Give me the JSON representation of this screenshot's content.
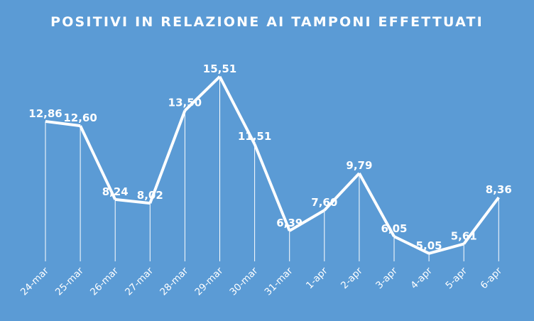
{
  "chart_data": {
    "type": "line",
    "title": "POSITIVI IN RELAZIONE AI TAMPONI EFFETTUATI",
    "categories": [
      "24-mar",
      "25-mar",
      "26-mar",
      "27-mar",
      "28-mar",
      "29-mar",
      "30-mar",
      "31-mar",
      "1-apr",
      "2-apr",
      "3-apr",
      "4-apr",
      "5-apr",
      "6-apr"
    ],
    "values": [
      12.86,
      12.6,
      8.24,
      8.02,
      13.5,
      15.51,
      11.51,
      6.39,
      7.6,
      9.79,
      6.05,
      5.05,
      5.61,
      8.36
    ],
    "labels": [
      "12,86",
      "12,60",
      "8,24",
      "8,02",
      "13,50",
      "15,51",
      "11,51",
      "6,39",
      "7,60",
      "9,79",
      "6,05",
      "5,05",
      "5,61",
      "8,36"
    ],
    "drop_lines": true,
    "grid": false,
    "legend": "none",
    "colors": {
      "background": "#5b9bd5",
      "line": "#ffffff",
      "text": "#ffffff"
    }
  }
}
